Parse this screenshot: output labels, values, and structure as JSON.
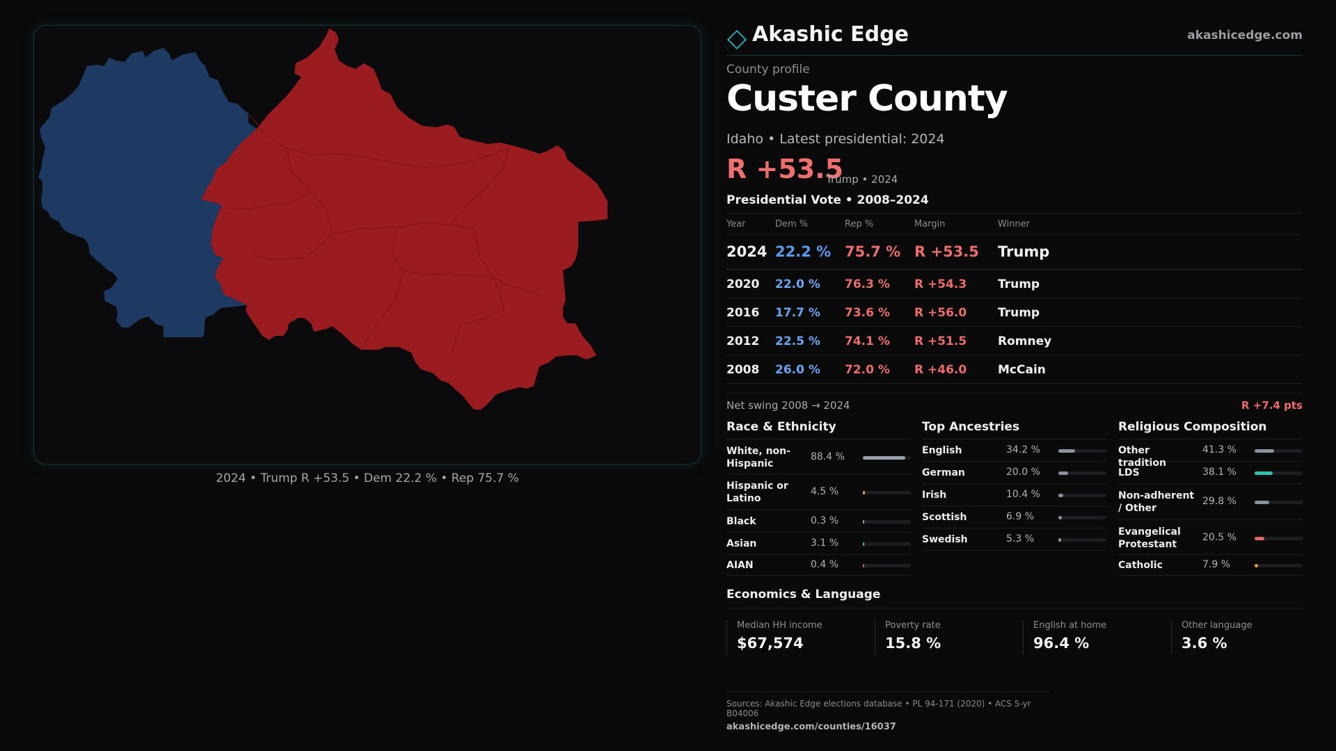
{
  "brand": {
    "name": "Akashic Edge",
    "url": "akashicedge.com",
    "accent": "#2aa6b3"
  },
  "profile": {
    "kicker": "County profile",
    "title": "Custer County",
    "subline": "Idaho • Latest presidential: 2024",
    "margin": "R +53.5",
    "margin_note": "Trump • 2024"
  },
  "map": {
    "caption": "2024 • Trump R +53.5 • Dem 22.2 % • Rep 75.7 %",
    "dem_color": "#1e3a63",
    "rep_color": "#9b1c20"
  },
  "vote_table": {
    "heading": "Presidential Vote • 2008–2024",
    "headers": [
      "Year",
      "Dem %",
      "Rep %",
      "Margin",
      "Winner"
    ],
    "rows": [
      {
        "year": "2024",
        "dem": "22.2 %",
        "rep": "75.7 %",
        "margin": "R +53.5",
        "winner": "Trump"
      },
      {
        "year": "2020",
        "dem": "22.0 %",
        "rep": "76.3 %",
        "margin": "R +54.3",
        "winner": "Trump"
      },
      {
        "year": "2016",
        "dem": "17.7 %",
        "rep": "73.6 %",
        "margin": "R +56.0",
        "winner": "Trump"
      },
      {
        "year": "2012",
        "dem": "22.5 %",
        "rep": "74.1 %",
        "margin": "R +51.5",
        "winner": "Romney"
      },
      {
        "year": "2008",
        "dem": "26.0 %",
        "rep": "72.0 %",
        "margin": "R +46.0",
        "winner": "McCain"
      }
    ],
    "swing_label": "Net swing 2008 → 2024",
    "swing_value": "R +7.4 pts"
  },
  "race": {
    "heading": "Race & Ethnicity",
    "items": [
      {
        "label": "White, non-Hispanic",
        "value": "88.4 %",
        "fraction": 0.884,
        "color": "#9aa3b2"
      },
      {
        "label": "Hispanic or Latino",
        "value": "4.5 %",
        "fraction": 0.045,
        "color": "#e0a23a"
      },
      {
        "label": "Black",
        "value": "0.3 %",
        "fraction": 0.003,
        "color": "#9aa3b2"
      },
      {
        "label": "Asian",
        "value": "3.1 %",
        "fraction": 0.031,
        "color": "#3fc2a3"
      },
      {
        "label": "AIAN",
        "value": "0.4 %",
        "fraction": 0.004,
        "color": "#c0703e"
      }
    ]
  },
  "ancestry": {
    "heading": "Top Ancestries",
    "items": [
      {
        "label": "English",
        "value": "34.2 %",
        "fraction": 0.342,
        "color": "#8a92a0"
      },
      {
        "label": "German",
        "value": "20.0 %",
        "fraction": 0.2,
        "color": "#8a92a0"
      },
      {
        "label": "Irish",
        "value": "10.4 %",
        "fraction": 0.104,
        "color": "#8a92a0"
      },
      {
        "label": "Scottish",
        "value": "6.9 %",
        "fraction": 0.069,
        "color": "#8a92a0"
      },
      {
        "label": "Swedish",
        "value": "5.3 %",
        "fraction": 0.053,
        "color": "#8a92a0"
      }
    ]
  },
  "religion": {
    "heading": "Religious Composition",
    "items": [
      {
        "label": "Other tradition",
        "value": "41.3 %",
        "fraction": 0.413,
        "color": "#8a92a0"
      },
      {
        "label": "LDS",
        "value": "38.1 %",
        "fraction": 0.381,
        "color": "#2cc0a8"
      },
      {
        "label": "Non-adherent / Other",
        "value": "29.8 %",
        "fraction": 0.298,
        "color": "#8a92a0"
      },
      {
        "label": "Evangelical Protestant",
        "value": "20.5 %",
        "fraction": 0.205,
        "color": "#e06a6a"
      },
      {
        "label": "Catholic",
        "value": "7.9 %",
        "fraction": 0.079,
        "color": "#e0a23a"
      }
    ]
  },
  "economics": {
    "heading": "Economics & Language",
    "items": [
      {
        "label": "Median HH income",
        "value": "$67,574"
      },
      {
        "label": "Poverty rate",
        "value": "15.8 %"
      },
      {
        "label": "English at home",
        "value": "96.4 %"
      },
      {
        "label": "Other language",
        "value": "3.6 %"
      }
    ]
  },
  "footer": {
    "sources": "Sources: Akashic Edge elections database • PL 94-171 (2020) • ACS 5-yr B04006",
    "url": "akashicedge.com/counties/16037"
  }
}
